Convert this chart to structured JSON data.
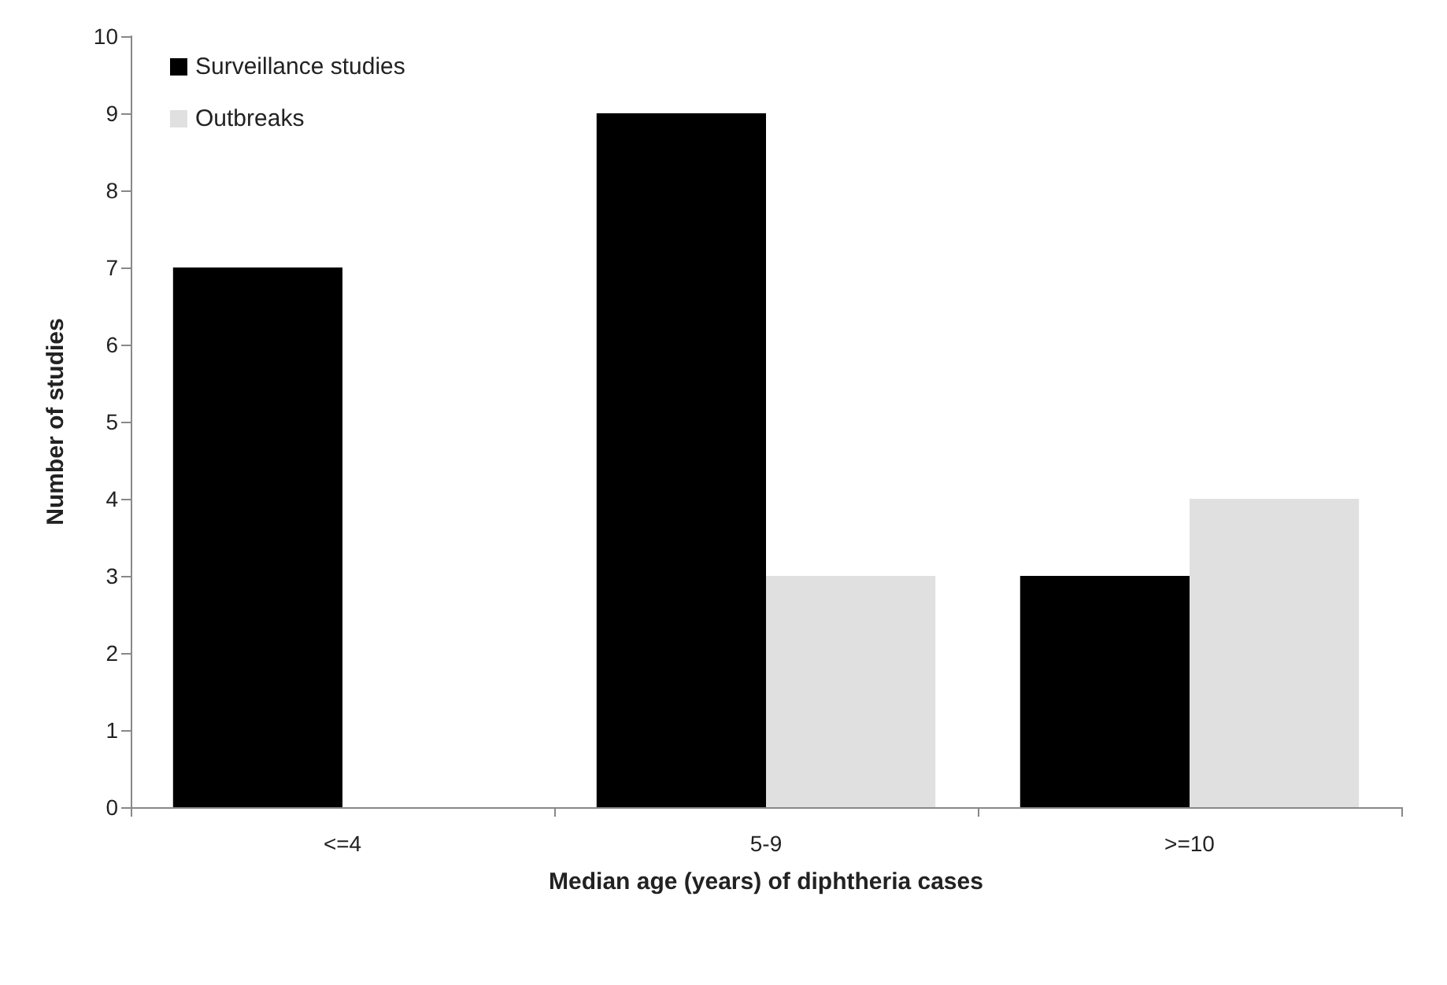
{
  "chart_data": {
    "type": "bar",
    "xlabel": "Median age (years) of diphtheria cases",
    "ylabel": "Number of studies",
    "categories": [
      "<=4",
      "5-9",
      ">=10"
    ],
    "series": [
      {
        "name": "Surveillance studies",
        "color": "#000000",
        "values": [
          7,
          9,
          3
        ]
      },
      {
        "name": "Outbreaks",
        "color": "#e0e0e0",
        "values": [
          0,
          3,
          4
        ]
      }
    ],
    "ylim": [
      0,
      10
    ],
    "yticks": [
      0,
      1,
      2,
      3,
      4,
      5,
      6,
      7,
      8,
      9,
      10
    ],
    "grid": false,
    "legend": "top left"
  }
}
